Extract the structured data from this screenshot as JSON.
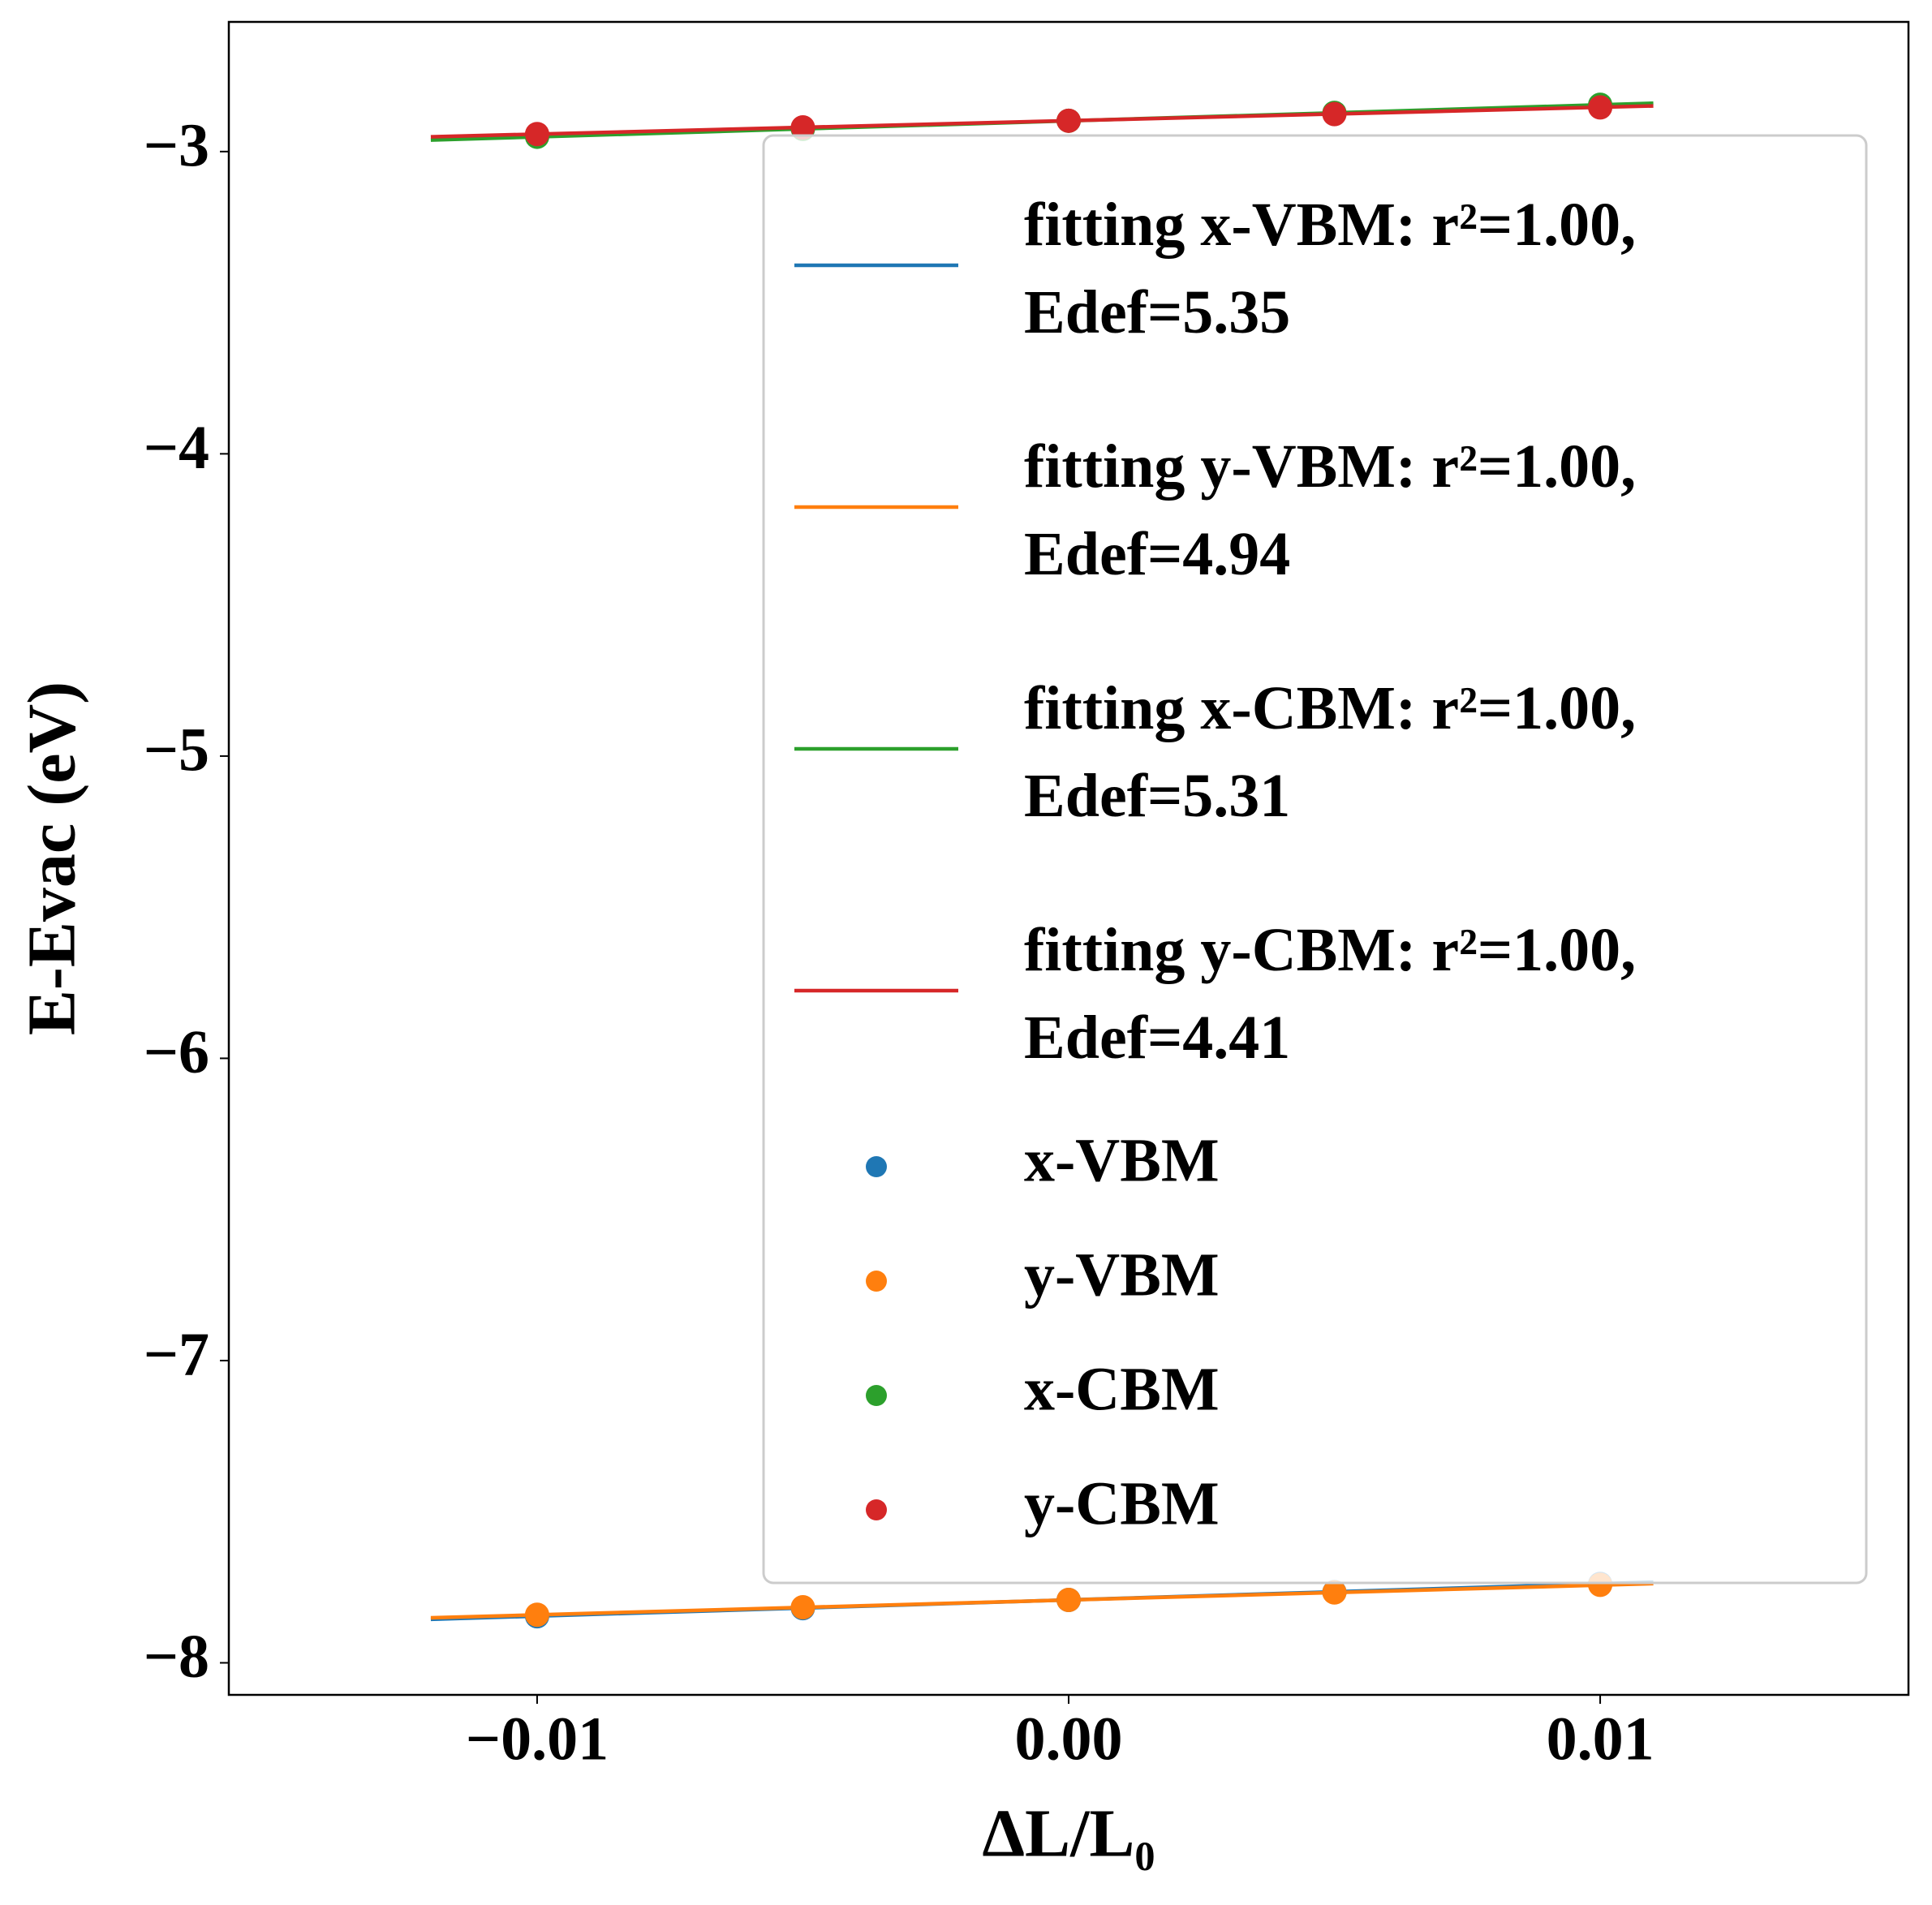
{
  "chart_data": {
    "type": "scatter",
    "x_label": "ΔL/L₀",
    "y_label": "E-Evac (eV)",
    "xlim": [
      -0.0158,
      0.0158
    ],
    "ylim": [
      -8.106,
      -2.571
    ],
    "xticks": [
      {
        "value": -0.01,
        "label": "−0.01"
      },
      {
        "value": 0,
        "label": "0.00"
      },
      0.01
    ],
    "yticks": [
      {
        "value": -3,
        "label": "−3"
      },
      {
        "value": -4,
        "label": "−4"
      },
      {
        "value": -5,
        "label": "−5"
      },
      {
        "value": -6,
        "label": "−6"
      },
      {
        "value": -7,
        "label": "−7"
      },
      {
        "value": -8,
        "label": "−8"
      }
    ],
    "legend": "upper right",
    "series": [
      {
        "name": "fitting x-VBM: r²=1.00, Edef=5.35",
        "style": "line",
        "color": "#1f77b4",
        "x": [
          -0.012,
          0.011
        ],
        "values": [
          -7.856,
          -7.733
        ]
      },
      {
        "name": "fitting y-VBM: r²=1.00, Edef=4.94",
        "style": "line",
        "color": "#ff7f0e",
        "x": [
          -0.012,
          0.011
        ],
        "values": [
          -7.851,
          -7.738
        ]
      },
      {
        "name": "fitting x-CBM: r²=1.00, Edef=5.31",
        "style": "line",
        "color": "#2ca02c",
        "x": [
          -0.012,
          0.011
        ],
        "values": [
          -2.962,
          -2.84
        ]
      },
      {
        "name": "fitting y-CBM: r²=1.00, Edef=4.41",
        "style": "line",
        "color": "#d62728",
        "x": [
          -0.012,
          0.011
        ],
        "values": [
          -2.951,
          -2.849
        ]
      },
      {
        "name": "x-VBM",
        "style": "marker",
        "color": "#1f77b4",
        "x": [
          -0.01,
          -0.005,
          0,
          0.005,
          0.01
        ],
        "values": [
          -7.846,
          -7.819,
          -7.792,
          -7.766,
          -7.739
        ]
      },
      {
        "name": "y-VBM",
        "style": "marker",
        "color": "#ff7f0e",
        "x": [
          -0.01,
          -0.005,
          0,
          0.005,
          0.01
        ],
        "values": [
          -7.841,
          -7.816,
          -7.792,
          -7.767,
          -7.742
        ]
      },
      {
        "name": "x-CBM",
        "style": "marker",
        "color": "#2ca02c",
        "x": [
          -0.01,
          -0.005,
          0,
          0.005,
          0.01
        ],
        "values": [
          -2.951,
          -2.925,
          -2.898,
          -2.872,
          -2.845
        ]
      },
      {
        "name": "y-CBM",
        "style": "marker",
        "color": "#d62728",
        "x": [
          -0.01,
          -0.005,
          0,
          0.005,
          0.01
        ],
        "values": [
          -2.942,
          -2.92,
          -2.898,
          -2.876,
          -2.854
        ]
      }
    ]
  }
}
